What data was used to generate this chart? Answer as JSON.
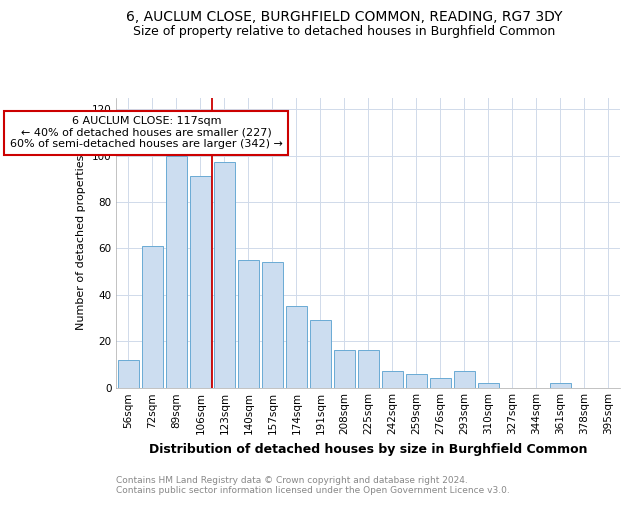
{
  "title1": "6, AUCLUM CLOSE, BURGHFIELD COMMON, READING, RG7 3DY",
  "title2": "Size of property relative to detached houses in Burghfield Common",
  "xlabel": "Distribution of detached houses by size in Burghfield Common",
  "ylabel": "Number of detached properties",
  "bar_color": "#ccddf0",
  "bar_edge_color": "#6aaad4",
  "categories": [
    "56sqm",
    "72sqm",
    "89sqm",
    "106sqm",
    "123sqm",
    "140sqm",
    "157sqm",
    "174sqm",
    "191sqm",
    "208sqm",
    "225sqm",
    "242sqm",
    "259sqm",
    "276sqm",
    "293sqm",
    "310sqm",
    "327sqm",
    "344sqm",
    "361sqm",
    "378sqm",
    "395sqm"
  ],
  "values": [
    12,
    61,
    100,
    91,
    97,
    55,
    54,
    35,
    29,
    16,
    16,
    7,
    6,
    4,
    7,
    2,
    0,
    0,
    2,
    0,
    0
  ],
  "vline_x": 3.5,
  "vline_color": "#cc0000",
  "annotation_text": "6 AUCLUM CLOSE: 117sqm\n← 40% of detached houses are smaller (227)\n60% of semi-detached houses are larger (342) →",
  "annotation_box_color": "#ffffff",
  "annotation_box_edge": "#cc0000",
  "ylim": [
    0,
    125
  ],
  "yticks": [
    0,
    20,
    40,
    60,
    80,
    100,
    120
  ],
  "footer1": "Contains HM Land Registry data © Crown copyright and database right 2024.",
  "footer2": "Contains public sector information licensed under the Open Government Licence v3.0.",
  "background_color": "#ffffff",
  "grid_color": "#d0daea",
  "title1_fontsize": 10,
  "title2_fontsize": 9,
  "xlabel_fontsize": 9,
  "ylabel_fontsize": 8,
  "footer_fontsize": 6.5,
  "tick_fontsize": 7.5,
  "annotation_fontsize": 8
}
